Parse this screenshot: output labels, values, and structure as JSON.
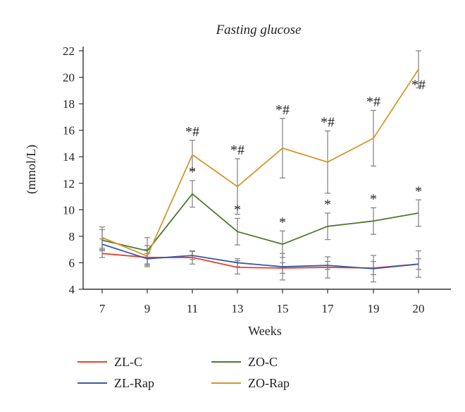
{
  "chart_data": {
    "type": "line",
    "title": "Fasting glucose",
    "xlabel": "Weeks",
    "ylabel": "(mmol/L)",
    "x": [
      "7",
      "9",
      "11",
      "13",
      "15",
      "17",
      "19",
      "20"
    ],
    "ylim": [
      4,
      22
    ],
    "yticks": [
      "4",
      "6",
      "8",
      "10",
      "12",
      "14",
      "16",
      "18",
      "20",
      "22"
    ],
    "grid": false,
    "legend_position": "bottom",
    "series": [
      {
        "name": "ZL-C",
        "color": "#e8412c",
        "values": [
          6.7,
          6.4,
          6.4,
          5.65,
          5.6,
          5.65,
          5.6,
          5.9
        ],
        "errors": [
          0.3,
          0.6,
          0.5,
          0.5,
          0.4,
          0.8,
          0.5,
          0.4
        ],
        "annotations": [
          "",
          "",
          "",
          "",
          "",
          "",
          "",
          ""
        ]
      },
      {
        "name": "ZL-Rap",
        "color": "#3b5aa8",
        "values": [
          7.4,
          6.3,
          6.55,
          6.0,
          5.7,
          5.8,
          5.55,
          5.9
        ],
        "errors": [
          0.4,
          0.4,
          0.3,
          0.3,
          1.0,
          0.3,
          1.0,
          1.0
        ],
        "annotations": [
          "",
          "",
          "",
          "",
          "",
          "",
          "",
          ""
        ]
      },
      {
        "name": "ZO-C",
        "color": "#4c7a2c",
        "values": [
          7.7,
          6.9,
          11.2,
          8.35,
          7.4,
          8.75,
          9.15,
          9.75
        ],
        "errors": [
          0.8,
          1.0,
          1.0,
          1.0,
          1.0,
          1.0,
          1.0,
          1.0
        ],
        "annotations": [
          "",
          "",
          "*",
          "*",
          "*",
          "*",
          "*",
          "*"
        ]
      },
      {
        "name": "ZO-Rap",
        "color": "#d4962c",
        "values": [
          7.9,
          6.5,
          14.15,
          11.75,
          14.65,
          13.6,
          15.4,
          20.6
        ],
        "errors": [
          0.8,
          0.8,
          1.1,
          2.1,
          2.25,
          2.35,
          2.1,
          1.4
        ],
        "annotations": [
          "",
          "",
          "*#",
          "*#",
          "*#",
          "*#",
          "*#",
          "*#"
        ]
      }
    ]
  }
}
